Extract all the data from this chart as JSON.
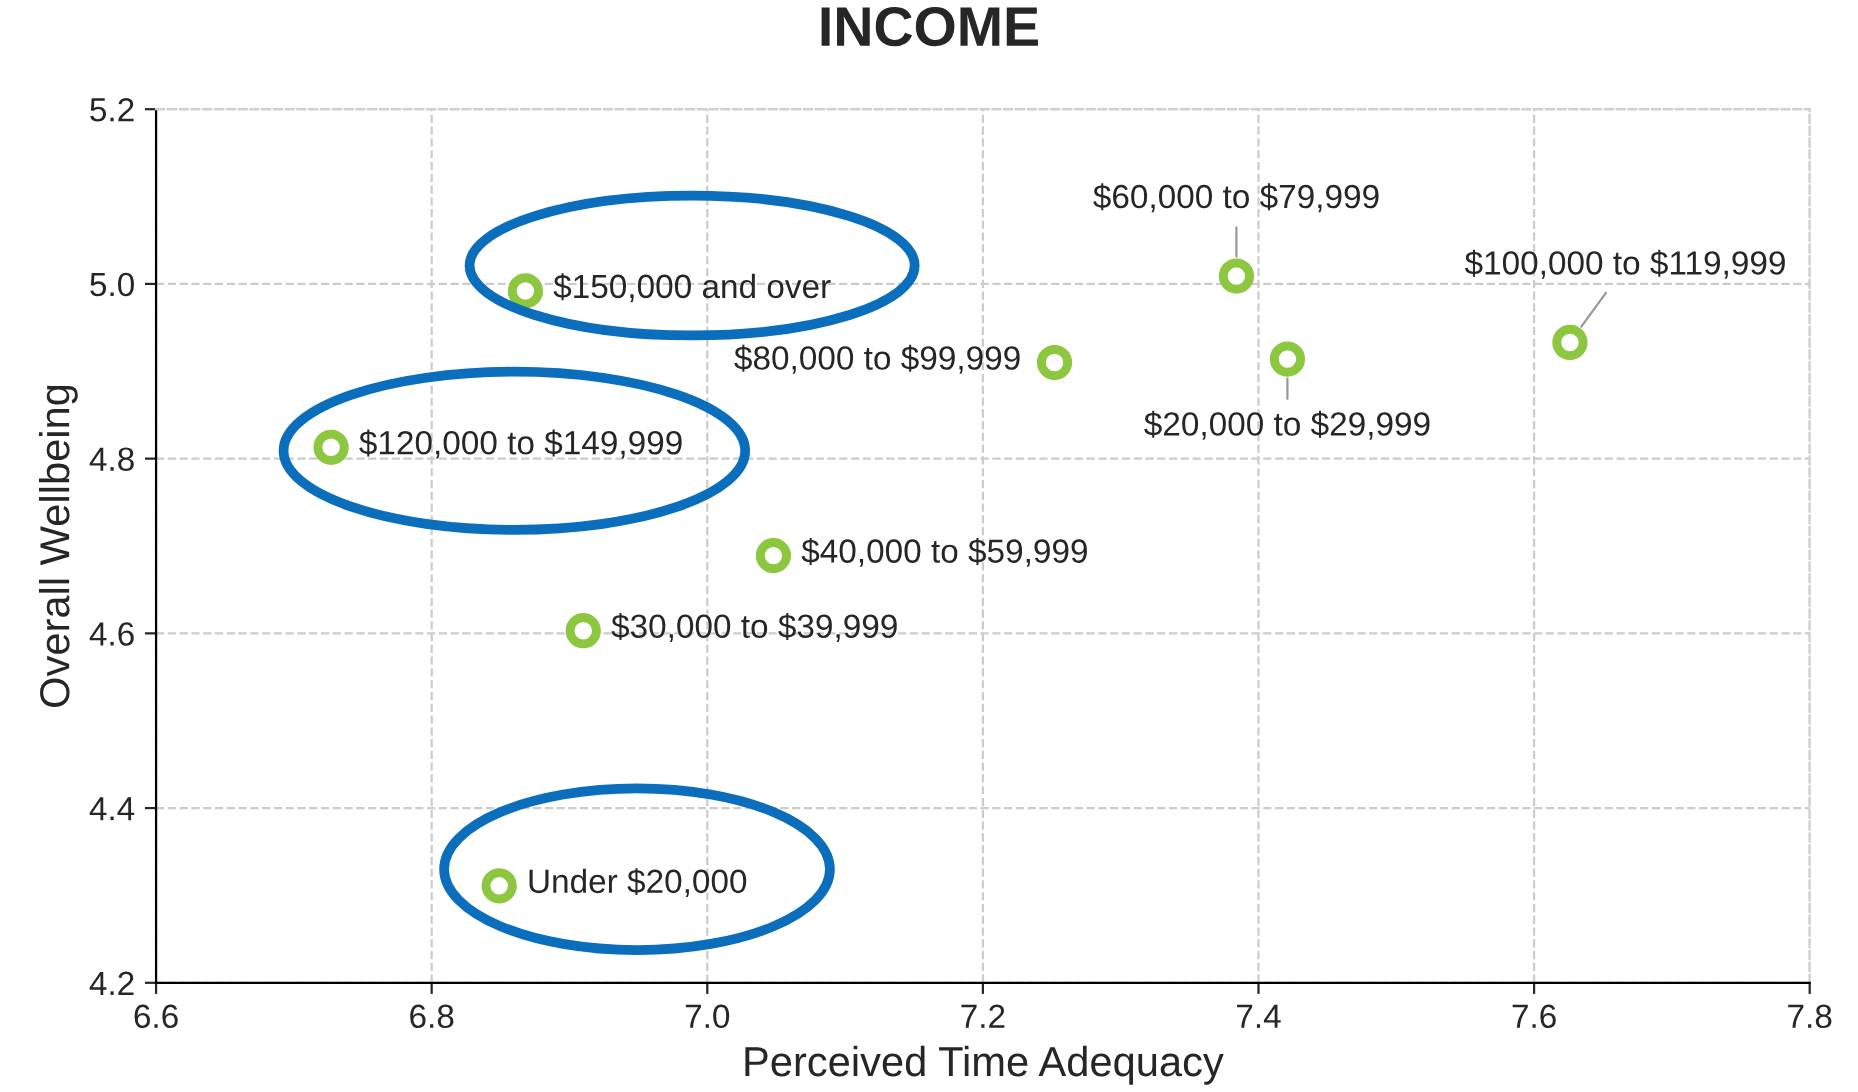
{
  "chart_data": {
    "type": "scatter",
    "title": "INCOME",
    "xlabel": "Perceived Time Adequacy",
    "ylabel": "Overall Wellbeing",
    "series": [
      {
        "color": "#8dc63f",
        "x": [
          6.868,
          6.727,
          7.048,
          6.91,
          6.849,
          7.252,
          7.384,
          7.421,
          7.626
        ],
        "values": [
          4.992,
          4.813,
          4.689,
          4.603,
          4.311,
          4.91,
          5.009,
          4.914,
          4.933
        ]
      }
    ],
    "annotations": [
      {
        "text": "$150,000 and over",
        "x": 6.868,
        "y": 4.992
      },
      {
        "text": "$120,000 to $149,999",
        "x": 6.727,
        "y": 4.813
      },
      {
        "text": "$40,000 to $59,999",
        "x": 7.048,
        "y": 4.689
      },
      {
        "text": "$30,000 to $39,999",
        "x": 6.91,
        "y": 4.603
      },
      {
        "text": "Under $20,000",
        "x": 6.849,
        "y": 4.311
      },
      {
        "text": "$80,000 to $99,999",
        "x": 7.252,
        "y": 4.91
      },
      {
        "text": "$60,000 to $79,999",
        "x": 7.384,
        "y": 5.009
      },
      {
        "text": "$20,000 to $29,999",
        "x": 7.421,
        "y": 4.914
      },
      {
        "text": "$100,000 to $119,999",
        "x": 7.626,
        "y": 4.933
      }
    ],
    "xlim": [
      6.6,
      7.8
    ],
    "xticks": [
      {
        "value": 6.6,
        "label": "6.6"
      },
      {
        "value": 6.8,
        "label": "6.8"
      },
      {
        "value": 7.0,
        "label": "7.0"
      },
      {
        "value": 7.2,
        "label": "7.2"
      },
      {
        "value": 7.4,
        "label": "7.4"
      },
      {
        "value": 7.6,
        "label": "7.6"
      },
      {
        "value": 7.8,
        "label": "7.8"
      }
    ],
    "ylim": [
      4.2,
      5.2
    ],
    "yticks": [
      {
        "value": 4.2,
        "label": "4.2"
      },
      {
        "value": 4.4,
        "label": "4.4"
      },
      {
        "value": 4.6,
        "label": "4.6"
      },
      {
        "value": 4.8,
        "label": "4.8"
      },
      {
        "value": 5.0,
        "label": "5.0"
      },
      {
        "value": 5.2,
        "label": "5.2"
      }
    ],
    "grid": true,
    "marker": "circle",
    "legend": false
  }
}
